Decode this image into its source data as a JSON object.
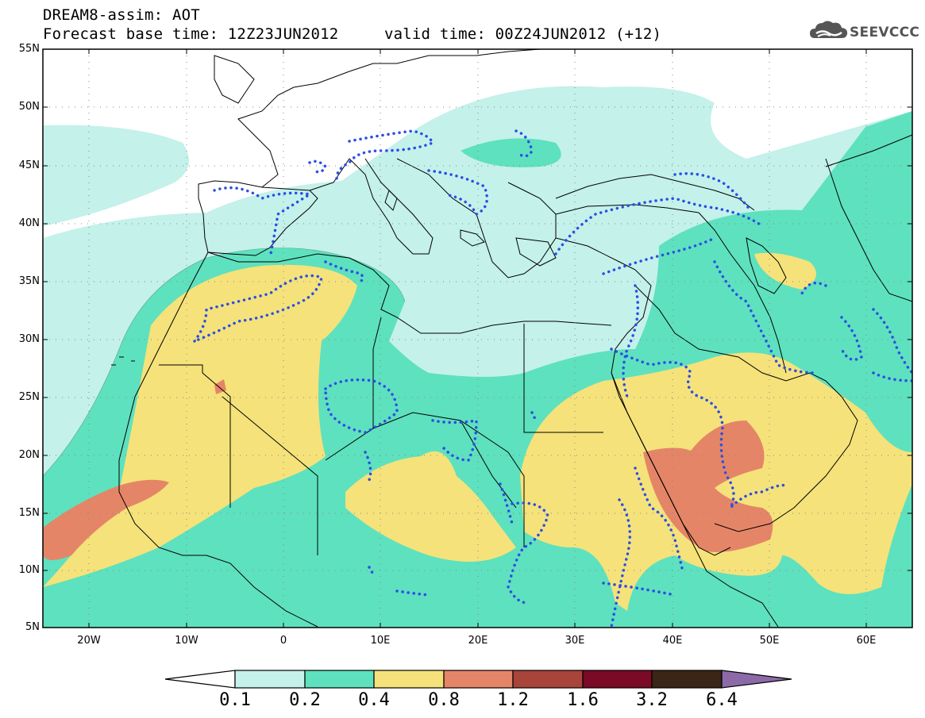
{
  "header": {
    "line1": "DREAM8-assim: AOT",
    "line2_left": "Forecast base time: 12Z23JUN2012",
    "line2_right": "valid time: 00Z24JUN2012 (+12)",
    "logo_text": "SEEVCCC"
  },
  "map": {
    "lat_labels": [
      "55N",
      "50N",
      "45N",
      "40N",
      "35N",
      "30N",
      "25N",
      "20N",
      "15N",
      "10N",
      "5N"
    ],
    "lon_labels": [
      "20W",
      "10W",
      "0",
      "10E",
      "20E",
      "30E",
      "40E",
      "50E",
      "60E"
    ],
    "lon_range": [
      -25,
      65
    ],
    "lat_range": [
      5,
      55
    ],
    "colors": {
      "lt01": "#ffffff",
      "c01_02": "#c4f1ea",
      "c02_04": "#5ee1be",
      "c04_08": "#f5e27a",
      "c08_12": "#e58567",
      "c12_16": "#a8443a",
      "c16_32": "#7a0a26",
      "c32_64": "#3b2516",
      "gt64": "#8c6aa8",
      "dotted_contour": "#2b4ee6",
      "borders": "#000000"
    }
  },
  "colorbar": {
    "labels": [
      "0.1",
      "0.2",
      "0.4",
      "0.8",
      "1.2",
      "1.6",
      "3.2",
      "6.4"
    ],
    "colors": [
      "#ffffff",
      "#c4f1ea",
      "#5ee1be",
      "#f5e27a",
      "#e58567",
      "#a8443a",
      "#7a0a26",
      "#3b2516",
      "#8c6aa8"
    ]
  }
}
